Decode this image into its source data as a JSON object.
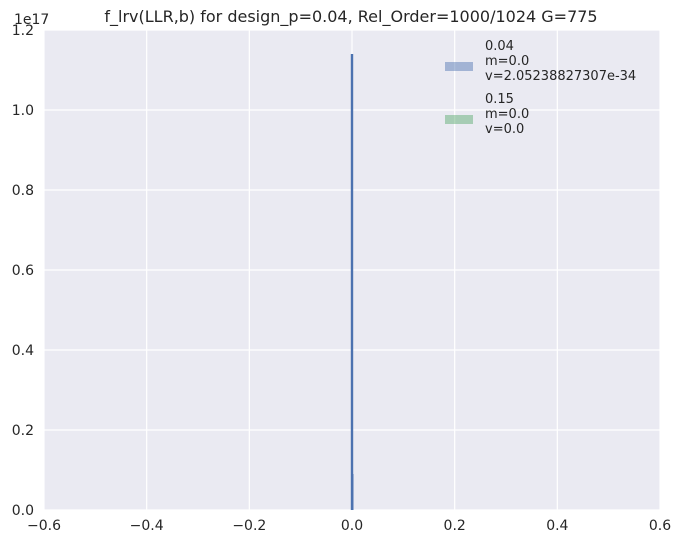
{
  "chart_data": {
    "type": "bar",
    "title": "f_lrv(LLR,b) for design_p=0.04, Rel_Order=1000/1024 G=775",
    "xlabel": "",
    "ylabel": "",
    "xlim": [
      -0.6,
      0.6
    ],
    "ylim": [
      0,
      1.2e+17
    ],
    "y_offset_text": "1e17",
    "x_ticks": [
      -0.6,
      -0.4,
      -0.2,
      0.0,
      0.2,
      0.4,
      0.6
    ],
    "x_tick_labels": [
      "−0.6",
      "−0.4",
      "−0.2",
      "0.0",
      "0.2",
      "0.4",
      "0.6"
    ],
    "y_ticks": [
      0.0,
      0.2,
      0.4,
      0.6,
      0.8,
      1.0,
      1.2
    ],
    "y_tick_labels": [
      "0.0",
      "0.2",
      "0.4",
      "0.6",
      "0.8",
      "1.0",
      "1.2"
    ],
    "grid": true,
    "legend_position": "top-right",
    "background": "#eaeaf2",
    "series": [
      {
        "name": "0.04\n m=0.0\n v=2.05238827307e-34",
        "color": "#4c72b0",
        "bars": [
          {
            "x": 0.0,
            "height": 1.14e+17
          },
          {
            "x": 0.0005,
            "height": 9000000000000000.0
          }
        ]
      },
      {
        "name": "0.15\n m=0.0\n v=0.0",
        "color": "#55a868",
        "bars": []
      }
    ],
    "legend": [
      {
        "lines": [
          "0.04",
          " m=0.0",
          " v=2.05238827307e-34"
        ],
        "color": "#4c72b0"
      },
      {
        "lines": [
          "0.15",
          " m=0.0",
          " v=0.0"
        ],
        "color": "#55a868"
      }
    ]
  }
}
